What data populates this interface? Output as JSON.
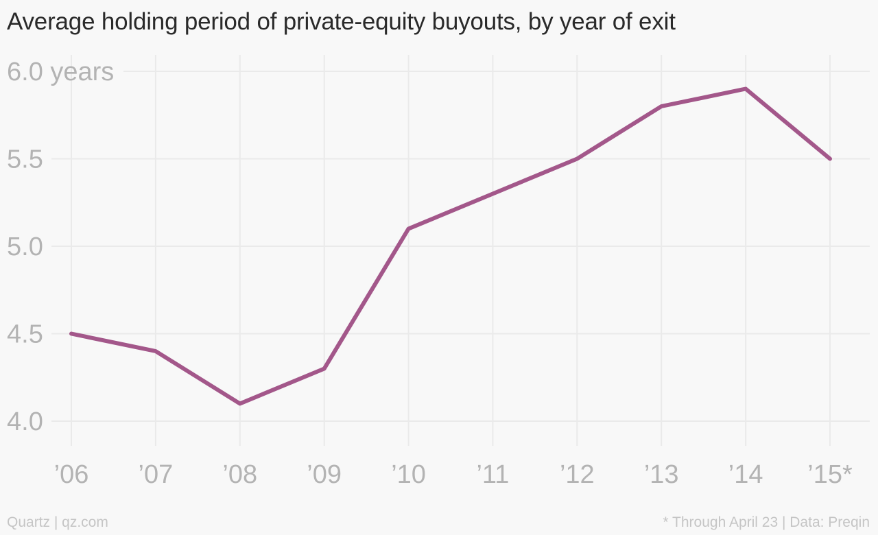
{
  "chart_data": {
    "type": "line",
    "title": "Average holding period of private-equity buyouts, by year of exit",
    "categories": [
      "’06",
      "’07",
      "’08",
      "’09",
      "’10",
      "’11",
      "’12",
      "’13",
      "’14",
      "’15*"
    ],
    "series": [
      {
        "values": [
          4.5,
          4.4,
          4.1,
          4.3,
          5.1,
          5.3,
          5.5,
          5.8,
          5.9,
          5.5
        ]
      }
    ],
    "yticks": [
      {
        "value": 6.0,
        "label": "6.0 years"
      },
      {
        "value": 5.5,
        "label": "5.5"
      },
      {
        "value": 5.0,
        "label": "5.0"
      },
      {
        "value": 4.5,
        "label": "4.5"
      },
      {
        "value": 4.0,
        "label": "4.0"
      }
    ],
    "ylim": [
      4.0,
      6.0
    ],
    "grid": true,
    "line_color": "#a3578a",
    "grid_color": "#eaeaea",
    "tick_label_color": "#b3b3b3"
  },
  "footer": {
    "source": "Quartz | qz.com",
    "note": "* Through April 23 | Data: Preqin"
  }
}
